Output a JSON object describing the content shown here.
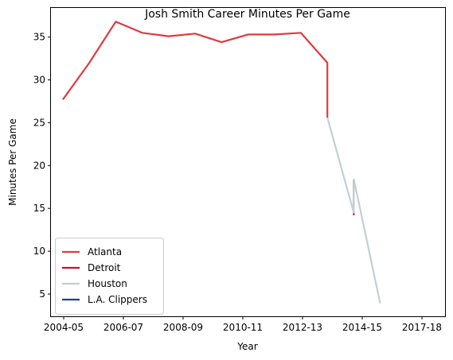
{
  "chart_data": {
    "type": "line",
    "title": "Josh Smith Career Minutes Per Game",
    "xlabel": "Year",
    "ylabel": "Minutes Per Game",
    "x_tick_labels": [
      "2004-05",
      "2006-07",
      "2008-09",
      "2010-11",
      "2012-13",
      "2014-15",
      "2017-18"
    ],
    "y_ticks": [
      5,
      10,
      15,
      20,
      25,
      30,
      35
    ],
    "xlim": [
      2003.55,
      2018.45
    ],
    "ylim": [
      2.4,
      38.4
    ],
    "grid": false,
    "legend_position": "lower-left",
    "series": [
      {
        "name": "Atlanta",
        "color": "#e03a3e",
        "points": [
          {
            "x": 2004,
            "y": 27.7
          },
          {
            "x": 2005,
            "y": 32.0
          },
          {
            "x": 2006,
            "y": 36.8
          },
          {
            "x": 2007,
            "y": 35.5
          },
          {
            "x": 2008,
            "y": 35.1
          },
          {
            "x": 2009,
            "y": 35.4
          },
          {
            "x": 2010,
            "y": 34.4
          },
          {
            "x": 2011,
            "y": 35.3
          },
          {
            "x": 2012,
            "y": 35.3
          },
          {
            "x": 2013,
            "y": 35.5
          },
          {
            "x": 2014,
            "y": 32.0
          },
          {
            "x": 2014,
            "y": 25.6
          }
        ]
      },
      {
        "name": "Detroit",
        "color": "#c8102e",
        "points": [
          {
            "x": 2015,
            "y": 18.3
          },
          {
            "x": 2015,
            "y": 14.2
          }
        ]
      },
      {
        "name": "Houston",
        "color": "#c4ced4",
        "points": [
          {
            "x": 2014,
            "y": 25.6
          },
          {
            "x": 2015,
            "y": 14.5
          },
          {
            "x": 2015,
            "y": 18.4
          },
          {
            "x": 2016,
            "y": 3.9
          }
        ]
      },
      {
        "name": "L.A. Clippers",
        "color": "#1d428a",
        "points": []
      }
    ]
  }
}
